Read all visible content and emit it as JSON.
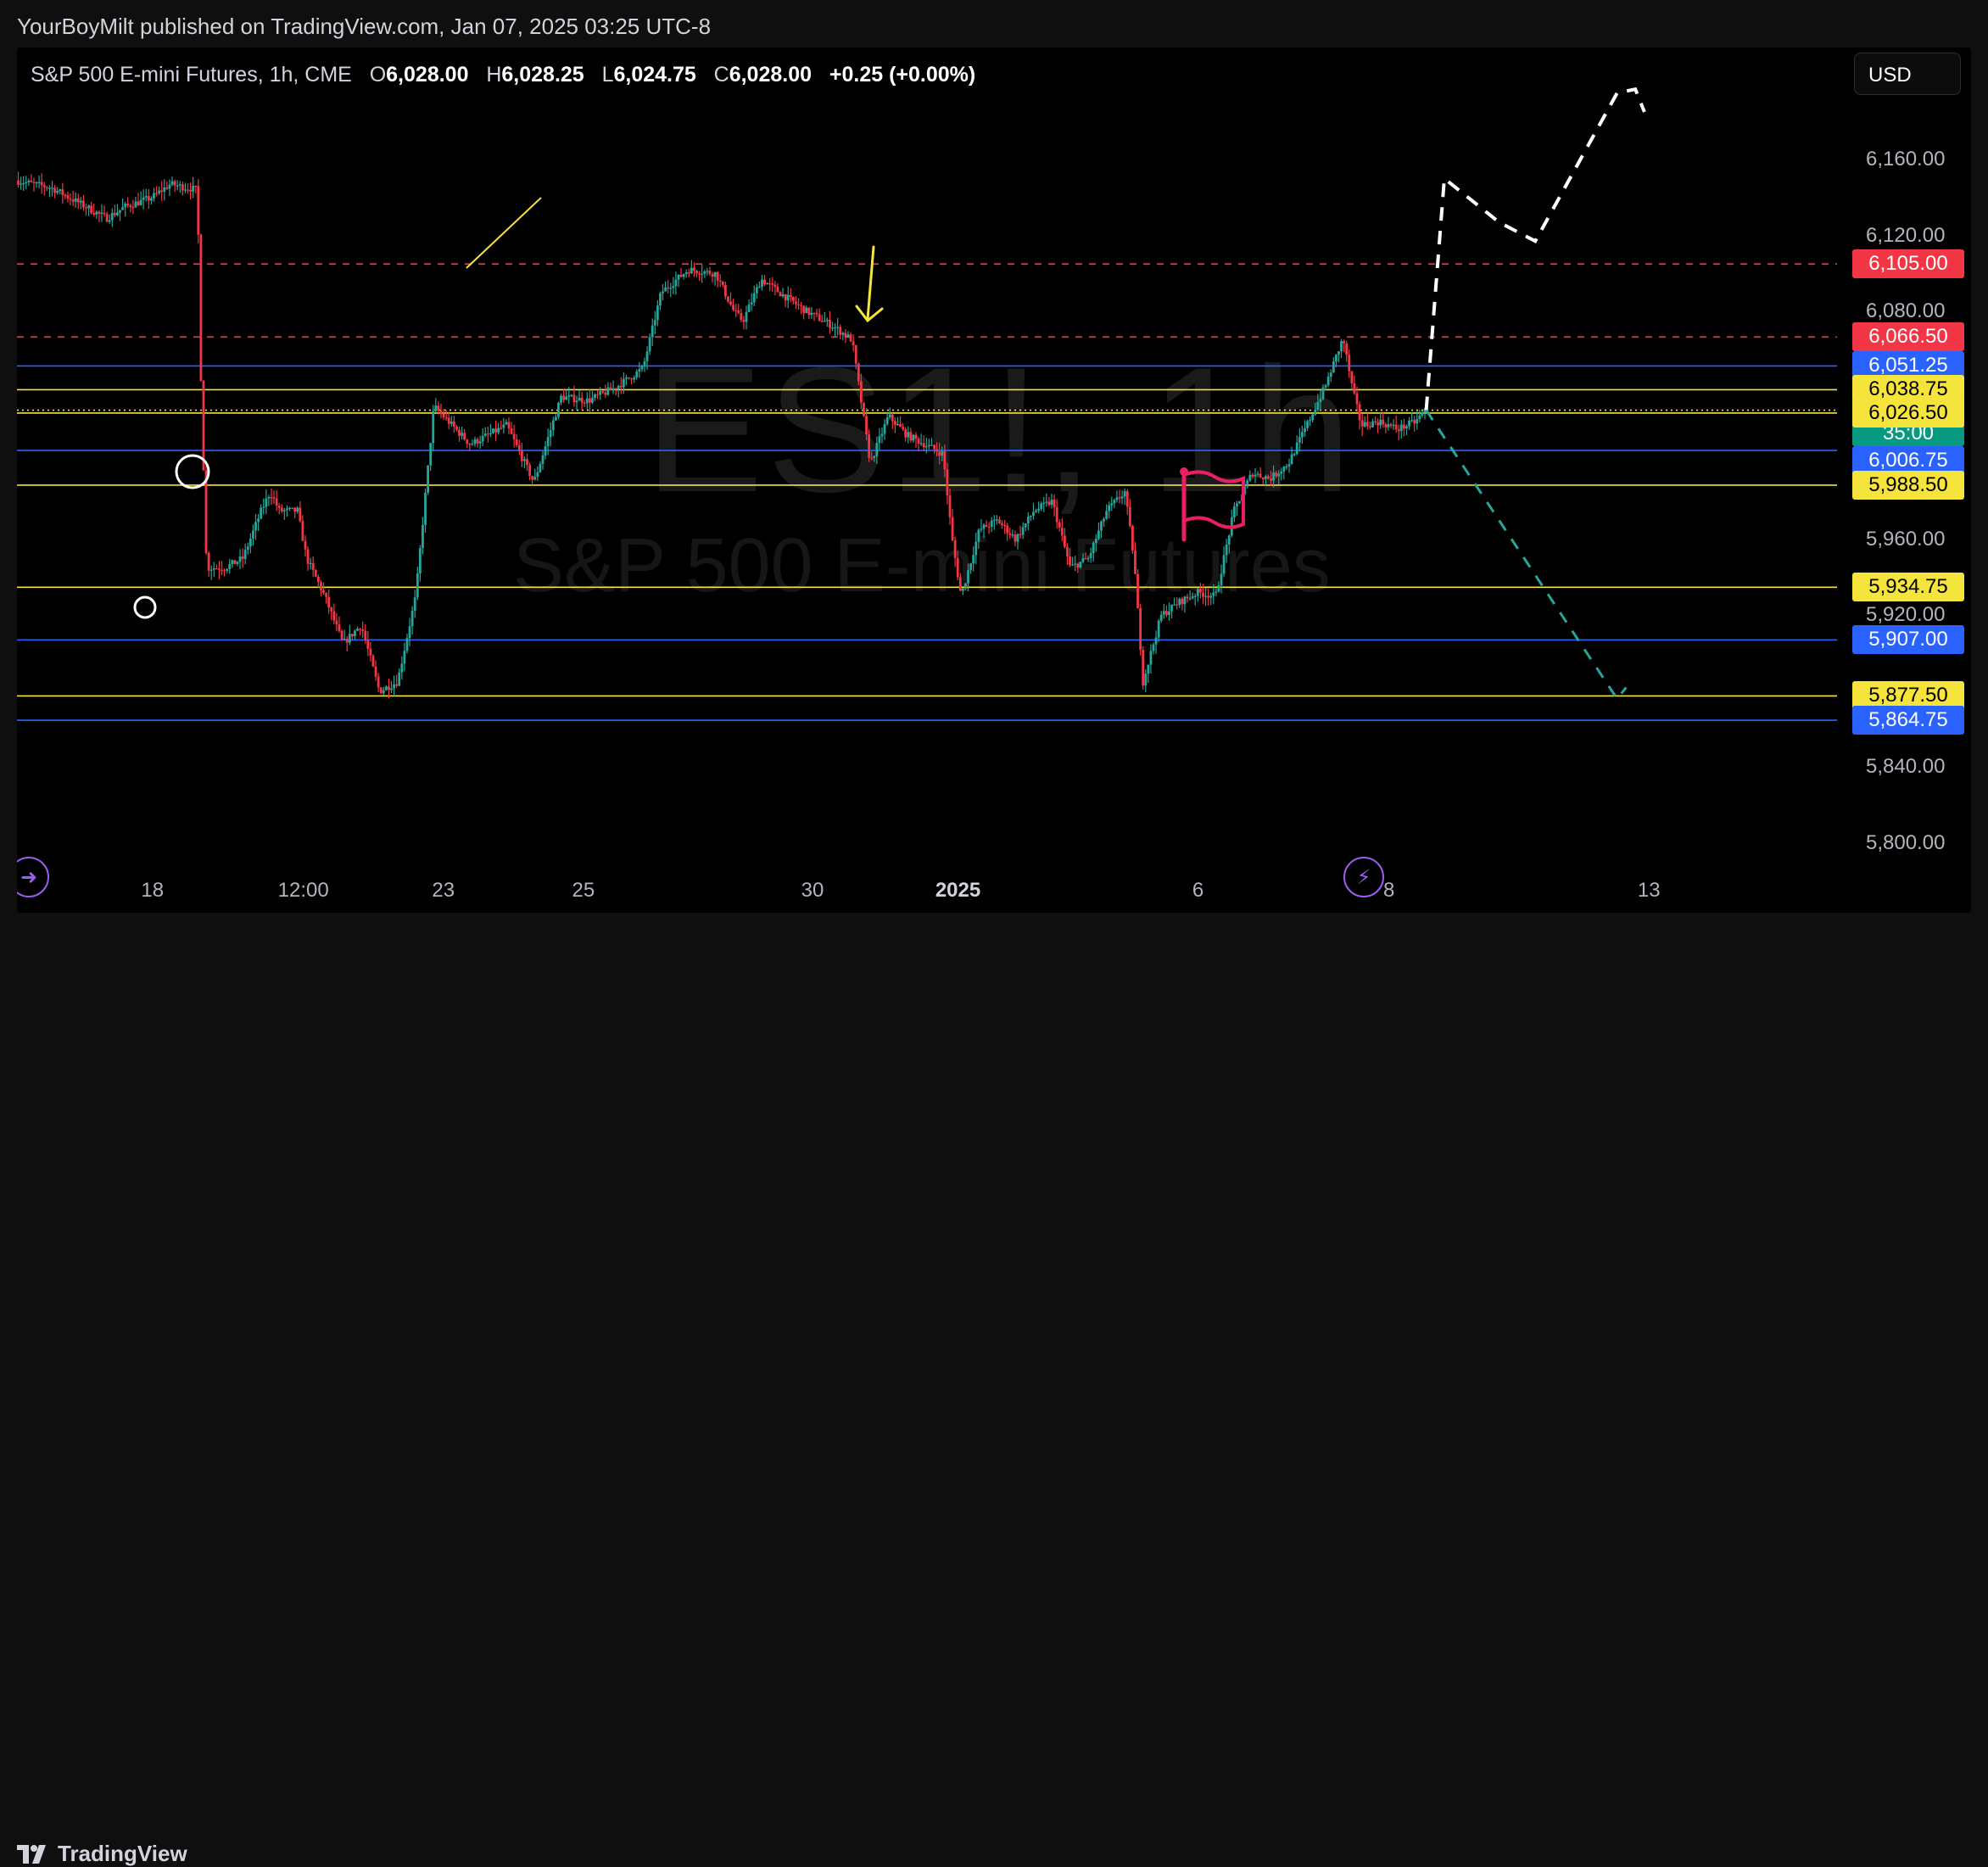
{
  "header": {
    "published": "YourBoyMilt published on TradingView.com, Jan 07, 2025 03:25 UTC-8"
  },
  "legend": {
    "symbol": "S&P 500 E-mini Futures, 1h, CME",
    "open_label": "O",
    "open": "6,028.00",
    "high_label": "H",
    "high": "6,028.25",
    "low_label": "L",
    "low": "6,024.75",
    "close_label": "C",
    "close": "6,028.00",
    "change": "+0.25 (+0.00%)"
  },
  "currency": "USD",
  "watermark": {
    "symbol": "ES1!, 1h",
    "name": "S&P 500 E-mini Futures"
  },
  "footer": {
    "brand": "TradingView"
  },
  "colors": {
    "up": "#26a69a",
    "down": "#f23645",
    "red_line": "#f23645",
    "blue_line": "#2962ff",
    "yellow_line": "#f5e43b",
    "white_path": "#ffffff",
    "teal_path": "#26a69a",
    "flag": "#e91e63"
  },
  "chart_data": {
    "type": "candlestick",
    "title": "S&P 500 E-mini Futures, 1h, CME",
    "symbol": "ES1!",
    "interval": "1h",
    "ylim": [
      5785,
      6220
    ],
    "y_ticks": [
      "6,160.00",
      "6,120.00",
      "6,080.00",
      "5,960.00",
      "5,920.00",
      "5,840.00",
      "5,800.00"
    ],
    "y_tick_values": [
      6160,
      6120,
      6080,
      5960,
      5920,
      5840,
      5800
    ],
    "x_ticks": [
      "18",
      "12:00",
      "23",
      "25",
      "30",
      "2025",
      "6",
      "8",
      "13"
    ],
    "x_tick_positions": [
      0.0745,
      0.1575,
      0.2345,
      0.3115,
      0.4375,
      0.5175,
      0.6495,
      0.7545,
      0.8975
    ],
    "price_path": [
      [
        0.0,
        6149
      ],
      [
        0.02,
        6145
      ],
      [
        0.035,
        6137
      ],
      [
        0.05,
        6129
      ],
      [
        0.06,
        6135
      ],
      [
        0.075,
        6140
      ],
      [
        0.085,
        6147
      ],
      [
        0.1,
        6144
      ],
      [
        0.102,
        6040
      ],
      [
        0.105,
        5945
      ],
      [
        0.115,
        5945
      ],
      [
        0.125,
        5950
      ],
      [
        0.135,
        5975
      ],
      [
        0.14,
        5985
      ],
      [
        0.145,
        5975
      ],
      [
        0.155,
        5975
      ],
      [
        0.16,
        5950
      ],
      [
        0.17,
        5930
      ],
      [
        0.18,
        5905
      ],
      [
        0.19,
        5915
      ],
      [
        0.2,
        5880
      ],
      [
        0.21,
        5885
      ],
      [
        0.22,
        5930
      ],
      [
        0.23,
        6030
      ],
      [
        0.24,
        6020
      ],
      [
        0.25,
        6010
      ],
      [
        0.27,
        6020
      ],
      [
        0.285,
        5990
      ],
      [
        0.3,
        6035
      ],
      [
        0.315,
        6033
      ],
      [
        0.33,
        6040
      ],
      [
        0.345,
        6050
      ],
      [
        0.355,
        6090
      ],
      [
        0.37,
        6102
      ],
      [
        0.385,
        6100
      ],
      [
        0.395,
        6080
      ],
      [
        0.4,
        6075
      ],
      [
        0.41,
        6097
      ],
      [
        0.42,
        6090
      ],
      [
        0.435,
        6080
      ],
      [
        0.45,
        6072
      ],
      [
        0.46,
        6065
      ],
      [
        0.47,
        6000
      ],
      [
        0.48,
        6025
      ],
      [
        0.49,
        6015
      ],
      [
        0.5,
        6010
      ],
      [
        0.51,
        6005
      ],
      [
        0.515,
        5960
      ],
      [
        0.52,
        5930
      ],
      [
        0.53,
        5965
      ],
      [
        0.54,
        5970
      ],
      [
        0.55,
        5960
      ],
      [
        0.56,
        5975
      ],
      [
        0.57,
        5980
      ],
      [
        0.58,
        5945
      ],
      [
        0.59,
        5950
      ],
      [
        0.6,
        5975
      ],
      [
        0.61,
        5985
      ],
      [
        0.615,
        5950
      ],
      [
        0.62,
        5885
      ],
      [
        0.63,
        5920
      ],
      [
        0.64,
        5927
      ],
      [
        0.65,
        5932
      ],
      [
        0.66,
        5930
      ],
      [
        0.67,
        5975
      ],
      [
        0.68,
        5995
      ],
      [
        0.69,
        5992
      ],
      [
        0.7,
        6000
      ],
      [
        0.71,
        6020
      ],
      [
        0.72,
        6040
      ],
      [
        0.73,
        6066
      ],
      [
        0.735,
        6040
      ],
      [
        0.74,
        6020
      ],
      [
        0.75,
        6022
      ],
      [
        0.76,
        6018
      ],
      [
        0.77,
        6022
      ],
      [
        0.775,
        6028
      ]
    ],
    "horizontal_levels": [
      {
        "price": 6105.0,
        "label": "6,105.00",
        "color": "red",
        "style": "dashed"
      },
      {
        "price": 6066.5,
        "label": "6,066.50",
        "color": "red",
        "style": "dashed"
      },
      {
        "price": 6051.25,
        "label": "6,051.25",
        "color": "blue",
        "style": "solid"
      },
      {
        "price": 6038.75,
        "label": "6,038.75",
        "color": "yellow",
        "style": "solid"
      },
      {
        "price": 6028.0,
        "label": "6,028.00",
        "color": "teal",
        "style": "dotted",
        "sublabel": "35:00"
      },
      {
        "price": 6026.5,
        "label": "6,026.50",
        "color": "yellow",
        "style": "solid"
      },
      {
        "price": 6006.75,
        "label": "6,006.75",
        "color": "blue",
        "style": "solid"
      },
      {
        "price": 5988.5,
        "label": "5,988.50",
        "color": "yellow",
        "style": "solid"
      },
      {
        "price": 5934.75,
        "label": "5,934.75",
        "color": "yellow",
        "style": "solid"
      },
      {
        "price": 5907.0,
        "label": "5,907.00",
        "color": "blue",
        "style": "solid"
      },
      {
        "price": 5877.5,
        "label": "5,877.50",
        "color": "yellow",
        "style": "solid"
      },
      {
        "price": 5864.75,
        "label": "5,864.75",
        "color": "blue",
        "style": "solid"
      }
    ],
    "projections": {
      "bullish_path": [
        [
          0.775,
          6028
        ],
        [
          0.785,
          6150
        ],
        [
          0.815,
          6127
        ],
        [
          0.835,
          6117
        ],
        [
          0.88,
          6195
        ],
        [
          0.89,
          6197
        ],
        [
          0.895,
          6185
        ]
      ],
      "bearish_path": [
        [
          0.775,
          6028
        ],
        [
          0.88,
          5876
        ],
        [
          0.885,
          5882
        ]
      ]
    }
  }
}
